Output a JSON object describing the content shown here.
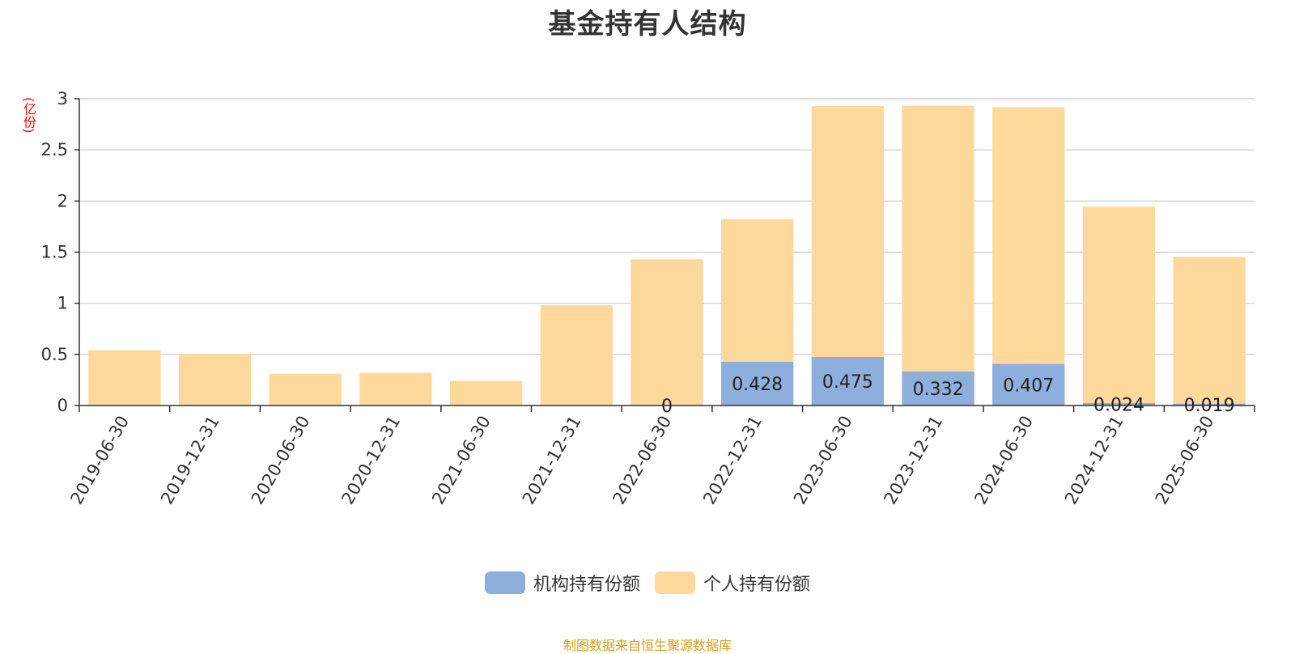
{
  "chart_data": {
    "type": "bar",
    "stacked": true,
    "title": "基金持有人结构",
    "unit_label": "(亿份)",
    "categories": [
      "2019-06-30",
      "2019-12-31",
      "2020-06-30",
      "2020-12-31",
      "2021-06-30",
      "2021-12-31",
      "2022-06-30",
      "2022-12-31",
      "2023-06-30",
      "2023-12-31",
      "2024-06-30",
      "2024-12-31",
      "2025-06-30"
    ],
    "series": [
      {
        "name": "机构持有份额",
        "color": "#8eaedb",
        "values": [
          0,
          0,
          0,
          0,
          0,
          0,
          0,
          0.428,
          0.475,
          0.332,
          0.407,
          0.024,
          0.019
        ],
        "labels": [
          "",
          "",
          "",
          "",
          "",
          "",
          "0",
          "0.428",
          "0.475",
          "0.332",
          "0.407",
          "0.024",
          "0.019"
        ]
      },
      {
        "name": "个人持有份额",
        "color": "#ffd99b",
        "values": [
          0.54,
          0.505,
          0.31,
          0.32,
          0.24,
          0.98,
          1.43,
          1.395,
          2.455,
          2.6,
          2.51,
          1.92,
          1.435
        ]
      }
    ],
    "ylim": [
      0,
      3
    ],
    "yticks": [
      0,
      0.5,
      1,
      1.5,
      2,
      2.5,
      3
    ],
    "ytick_labels": [
      "0",
      "0.5",
      "1",
      "1.5",
      "2",
      "2.5",
      "3"
    ],
    "grid": true,
    "legend_position": "bottom-center"
  },
  "source_note": "制图数据来自恒生聚源数据库"
}
